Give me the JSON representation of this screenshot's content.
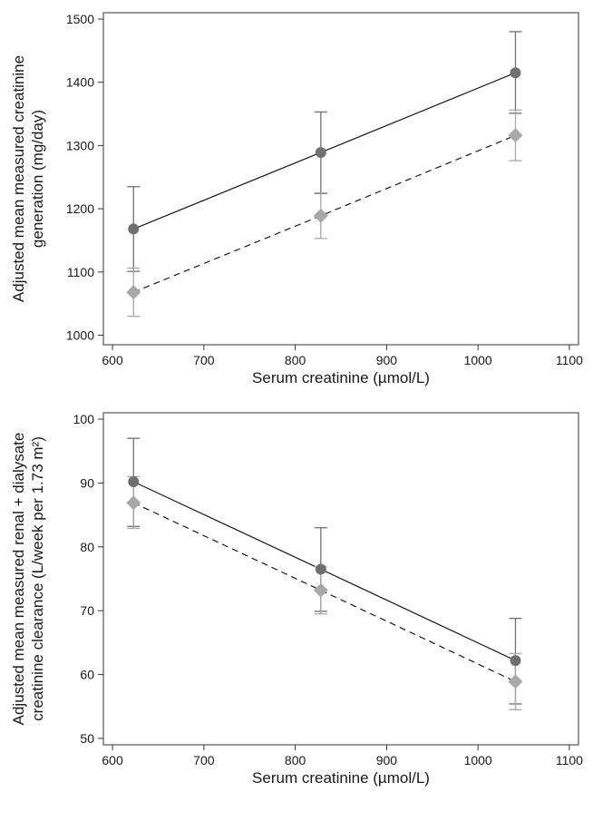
{
  "chart_data": [
    {
      "type": "line",
      "xlabel": "Serum creatinine (µmol/L)",
      "ylabel_lines": [
        "Adjusted mean measured creatinine",
        "generation (mg/day)"
      ],
      "xlim": [
        590,
        1110
      ],
      "ylim": [
        985,
        1510
      ],
      "x_ticks": [
        600,
        700,
        800,
        900,
        1000,
        1100
      ],
      "y_ticks": [
        1000,
        1100,
        1200,
        1300,
        1400,
        1500
      ],
      "grid": false,
      "series": [
        {
          "marker": "circle",
          "line_style": "solid",
          "color": "#707070",
          "line_color": "#1a1a1a",
          "points": [
            {
              "x": 623,
              "y": 1168,
              "lo": 1101,
              "hi": 1235
            },
            {
              "x": 828,
              "y": 1289,
              "lo": 1224,
              "hi": 1353
            },
            {
              "x": 1041,
              "y": 1415,
              "lo": 1351,
              "hi": 1480
            }
          ]
        },
        {
          "marker": "diamond",
          "line_style": "dashed",
          "color": "#a8a8a8",
          "line_color": "#1a1a1a",
          "points": [
            {
              "x": 623,
              "y": 1068,
              "lo": 1030,
              "hi": 1106
            },
            {
              "x": 828,
              "y": 1189,
              "lo": 1153,
              "hi": 1225
            },
            {
              "x": 1041,
              "y": 1316,
              "lo": 1276,
              "hi": 1356
            }
          ]
        }
      ]
    },
    {
      "type": "line",
      "xlabel": "Serum creatinine (µmol/L)",
      "ylabel_lines": [
        "Adjusted mean measured renal + dialysate",
        "creatinine clearance (L/week per 1.73 m²)"
      ],
      "xlim": [
        590,
        1110
      ],
      "ylim": [
        49,
        101
      ],
      "x_ticks": [
        600,
        700,
        800,
        900,
        1000,
        1100
      ],
      "y_ticks": [
        50,
        60,
        70,
        80,
        90,
        100
      ],
      "grid": false,
      "series": [
        {
          "marker": "circle",
          "line_style": "solid",
          "color": "#707070",
          "line_color": "#1a1a1a",
          "points": [
            {
              "x": 623,
              "y": 90.2,
              "lo": 83.2,
              "hi": 97.0
            },
            {
              "x": 828,
              "y": 76.5,
              "lo": 69.9,
              "hi": 83.0
            },
            {
              "x": 1041,
              "y": 62.2,
              "lo": 55.4,
              "hi": 68.8
            }
          ]
        },
        {
          "marker": "diamond",
          "line_style": "dashed",
          "color": "#a8a8a8",
          "line_color": "#1a1a1a",
          "points": [
            {
              "x": 623,
              "y": 86.9,
              "lo": 82.9,
              "hi": 91.0
            },
            {
              "x": 828,
              "y": 73.2,
              "lo": 69.5,
              "hi": 76.9
            },
            {
              "x": 1041,
              "y": 58.9,
              "lo": 54.5,
              "hi": 63.3
            }
          ]
        }
      ]
    }
  ]
}
